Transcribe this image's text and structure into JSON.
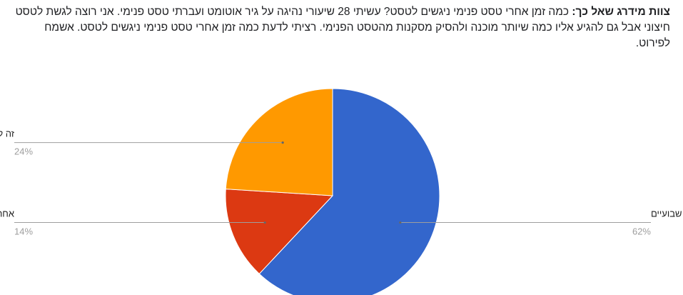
{
  "question": {
    "prefix": "צוות מידרג שאל כך:",
    "text": "כמה זמן אחרי טסט פנימי ניגשים לטסט? עשיתי 28 שיעורי נהיגה על גיר אוטומט ועברתי טסט פנימי. אני רוצה לגשת לטסט חיצוני אבל גם להגיע אליו כמה שיותר מוכנה ולהסיק מסקנות מהטסט הפנימי. רציתי לדעת כמה זמן אחרי טסט פנימי ניגשים לטסט. אשמח לפירוט."
  },
  "chart_data": {
    "type": "pie",
    "start_angle_deg": 0,
    "direction": "clockwise",
    "slices": [
      {
        "label": "אחרי שבועיים",
        "value": 62,
        "percent_label": "62%",
        "color": "#3366cc",
        "legend_side": "right"
      },
      {
        "label": "אחרי שלושה שבועות",
        "value": 14,
        "percent_label": "14%",
        "color": "#dc3912",
        "legend_side": "left"
      },
      {
        "label": "זה לא משנה",
        "value": 24,
        "percent_label": "24%",
        "color": "#ff9900",
        "legend_side": "left"
      }
    ]
  }
}
